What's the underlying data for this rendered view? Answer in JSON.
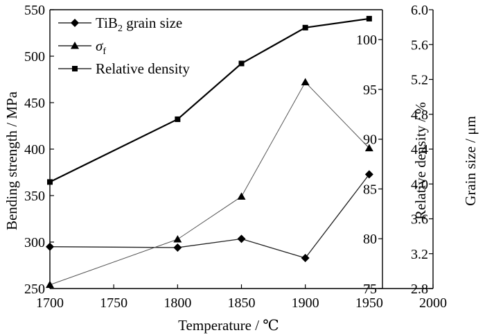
{
  "chart_data": {
    "type": "line",
    "x": [
      1700,
      1800,
      1850,
      1900,
      1950
    ],
    "xlabel": "Temperature / ℃",
    "xlim": [
      1700,
      2000
    ],
    "x_ticks": [
      "1700",
      "1750",
      "1800",
      "1850",
      "1900",
      "1950",
      "2000"
    ],
    "axes": {
      "left": {
        "label": "Bending strength / MPa",
        "lim": [
          250,
          550
        ],
        "ticks": [
          "250",
          "300",
          "350",
          "400",
          "450",
          "500",
          "550"
        ]
      },
      "right1": {
        "label": "Relative density / %",
        "lim": [
          75,
          103
        ],
        "ticks": [
          "75",
          "80",
          "85",
          "90",
          "95",
          "100"
        ]
      },
      "right2": {
        "label": "Grain size / μm",
        "lim": [
          2.8,
          6.0
        ],
        "ticks": [
          "2.8",
          "3.2",
          "3.6",
          "4.0",
          "4.4",
          "4.8",
          "5.2",
          "5.6",
          "6.0"
        ]
      }
    },
    "series": [
      {
        "legend_main": "TiB",
        "legend_sub": "2",
        "legend_rest": " grain size",
        "axis": "right2",
        "marker": "diamond",
        "values": [
          3.28,
          3.27,
          3.37,
          3.15,
          4.11
        ]
      },
      {
        "legend_main": "σ",
        "legend_sub": "f",
        "legend_rest": "",
        "axis": "left",
        "marker": "triangle",
        "values": [
          254,
          303,
          349,
          472,
          401
        ]
      },
      {
        "legend_main": "Relative density",
        "legend_sub": "",
        "legend_rest": "",
        "axis": "right1",
        "marker": "square",
        "values": [
          85.7,
          92.0,
          97.6,
          101.2,
          102.1
        ]
      }
    ],
    "legend_position": "top-left",
    "grid": false
  }
}
